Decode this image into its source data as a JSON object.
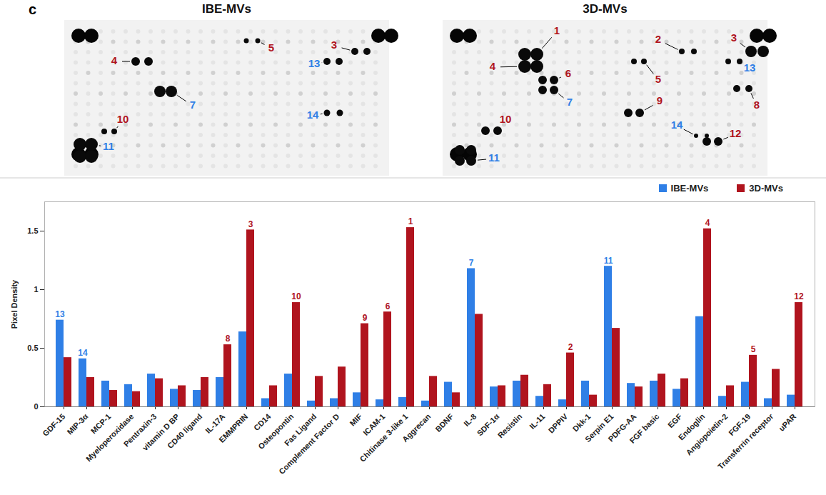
{
  "panel_label": "c",
  "blots": [
    {
      "title": "IBE-MVs",
      "spot_labels": [
        "4",
        "5",
        "3",
        "13",
        "7",
        "10",
        "14",
        "11"
      ]
    },
    {
      "title": "3D-MVs",
      "spot_labels": [
        "1",
        "2",
        "3",
        "4",
        "5",
        "6",
        "7",
        "13",
        "8",
        "9",
        "10",
        "14",
        "12",
        "11"
      ]
    }
  ],
  "chart_data": {
    "type": "bar",
    "categories": [
      "GDF-15",
      "MIP-3α",
      "MCP-1",
      "Myeloperoxidase",
      "Pentraxin-3",
      "vitamin D BP",
      "CD40 ligand",
      "IL-17A",
      "EMMPRIN",
      "CD14",
      "Osteopontin",
      "Fas Ligand",
      "Complement Factor D",
      "MIF",
      "ICAM-1",
      "Chitinase 3-like 1",
      "Aggrecan",
      "BDNF",
      "IL-8",
      "SDF-1α",
      "Resistin",
      "IL-11",
      "DPPIV",
      "Dkk-1",
      "Serpin E1",
      "PDFG-AA",
      "FGF basic",
      "EGF",
      "Endoglin",
      "Angiopoietin-2",
      "FGF-19",
      "Transferrin receptor",
      "uPAR"
    ],
    "series": [
      {
        "name": "IBE-MVs",
        "color": "#2f7fe6",
        "values": [
          0.74,
          0.41,
          0.22,
          0.19,
          0.28,
          0.15,
          0.14,
          0.25,
          0.64,
          0.07,
          0.28,
          0.05,
          0.07,
          0.12,
          0.06,
          0.08,
          0.05,
          0.21,
          1.18,
          0.17,
          0.22,
          0.09,
          0.06,
          0.22,
          1.2,
          0.2,
          0.22,
          0.15,
          0.77,
          0.09,
          0.21,
          0.07,
          0.1
        ]
      },
      {
        "name": "3D-MVs",
        "color": "#b0141e",
        "values": [
          0.42,
          0.25,
          0.14,
          0.13,
          0.24,
          0.18,
          0.25,
          0.53,
          1.51,
          0.18,
          0.89,
          0.26,
          0.34,
          0.71,
          0.81,
          1.53,
          0.26,
          0.12,
          0.79,
          0.18,
          0.27,
          0.19,
          0.46,
          0.1,
          0.67,
          0.17,
          0.28,
          0.24,
          1.52,
          0.18,
          0.44,
          0.32,
          0.89
        ]
      }
    ],
    "ylabel": "Pixel Density",
    "ylim": [
      0,
      1.75
    ],
    "yticks": [
      0,
      0.5,
      1,
      1.5
    ],
    "grid": false,
    "legend": "top-right",
    "annotations": [
      {
        "category": "GDF-15",
        "series": "IBE-MVs",
        "text": "13"
      },
      {
        "category": "MIP-3α",
        "series": "IBE-MVs",
        "text": "14"
      },
      {
        "category": "IL-17A",
        "series": "3D-MVs",
        "text": "8"
      },
      {
        "category": "EMMPRIN",
        "series": "3D-MVs",
        "text": "3"
      },
      {
        "category": "Osteopontin",
        "series": "3D-MVs",
        "text": "10"
      },
      {
        "category": "MIF",
        "series": "3D-MVs",
        "text": "9"
      },
      {
        "category": "ICAM-1",
        "series": "3D-MVs",
        "text": "6"
      },
      {
        "category": "Chitinase 3-like 1",
        "series": "3D-MVs",
        "text": "1"
      },
      {
        "category": "IL-8",
        "series": "IBE-MVs",
        "text": "7"
      },
      {
        "category": "DPPIV",
        "series": "3D-MVs",
        "text": "2"
      },
      {
        "category": "Serpin E1",
        "series": "IBE-MVs",
        "text": "11"
      },
      {
        "category": "Endoglin",
        "series": "3D-MVs",
        "text": "4"
      },
      {
        "category": "FGF-19",
        "series": "3D-MVs",
        "text": "5"
      },
      {
        "category": "uPAR",
        "series": "3D-MVs",
        "text": "12"
      }
    ]
  }
}
